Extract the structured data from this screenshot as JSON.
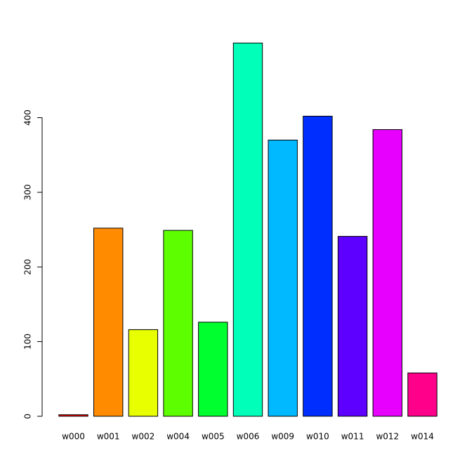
{
  "chart_data": {
    "type": "bar",
    "categories": [
      "w000",
      "w001",
      "w002",
      "w004",
      "w005",
      "w006",
      "w009",
      "w010",
      "w011",
      "w012",
      "w014"
    ],
    "values": [
      2,
      252,
      116,
      249,
      126,
      500,
      370,
      402,
      241,
      384,
      58
    ],
    "colors": [
      "#FF0000",
      "#FF8B00",
      "#E8FF00",
      "#5DFF00",
      "#00FF2E",
      "#00FFB9",
      "#00B9FF",
      "#002EFF",
      "#5D00FF",
      "#E800FF",
      "#FF008B"
    ],
    "ylim": [
      -20,
      520
    ],
    "yticks": [
      0,
      100,
      200,
      300,
      400
    ]
  }
}
